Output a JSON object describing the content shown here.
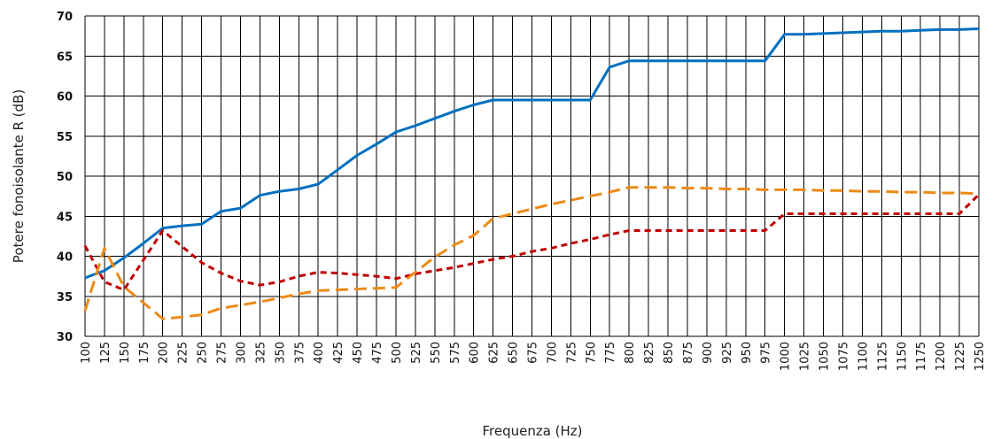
{
  "chart_data": {
    "type": "line",
    "title": "",
    "xlabel": "Frequenza (Hz)",
    "ylabel": "Potere fonoisolante R (dB)",
    "ylim": [
      30,
      70
    ],
    "yticks": [
      "30",
      "35",
      "40",
      "45",
      "50",
      "55",
      "60",
      "65",
      "70"
    ],
    "categories": [
      "100",
      "125",
      "150",
      "175",
      "200",
      "225",
      "250",
      "275",
      "300",
      "325",
      "350",
      "375",
      "400",
      "425",
      "450",
      "475",
      "500",
      "525",
      "550",
      "575",
      "600",
      "625",
      "650",
      "675",
      "700",
      "725",
      "750",
      "775",
      "800",
      "825",
      "850",
      "875",
      "900",
      "925",
      "950",
      "975",
      "1000",
      "1025",
      "1050",
      "1075",
      "1100",
      "1125",
      "1150",
      "1175",
      "1200",
      "1225",
      "1250"
    ],
    "grid": true,
    "series": [
      {
        "color": "#0070c0",
        "dash": "solid",
        "values": [
          37.3,
          38.2,
          39.8,
          41.6,
          43.5,
          43.8,
          44.0,
          45.6,
          46.0,
          47.6,
          48.1,
          48.4,
          49.0,
          50.8,
          52.6,
          54.0,
          55.5,
          56.3,
          57.2,
          58.1,
          58.9,
          59.5,
          59.5,
          59.5,
          59.5,
          59.5,
          59.5,
          63.6,
          64.4,
          64.4,
          64.4,
          64.4,
          64.4,
          64.4,
          64.4,
          64.4,
          67.7,
          67.7,
          67.8,
          67.9,
          68.0,
          68.1,
          68.1,
          68.2,
          68.3,
          68.3,
          68.4
        ]
      },
      {
        "color": "#c00000",
        "dash": "short",
        "values": [
          41.3,
          36.8,
          35.8,
          39.5,
          43.2,
          41.2,
          39.2,
          37.9,
          36.9,
          36.4,
          36.8,
          37.5,
          38.0,
          37.9,
          37.7,
          37.5,
          37.2,
          37.8,
          38.2,
          38.6,
          39.1,
          39.6,
          40.0,
          40.6,
          41.0,
          41.6,
          42.1,
          42.7,
          43.2,
          43.2,
          43.2,
          43.2,
          43.2,
          43.2,
          43.2,
          43.2,
          45.3,
          45.3,
          45.3,
          45.3,
          45.3,
          45.3,
          45.3,
          45.3,
          45.3,
          45.3,
          47.7
        ]
      },
      {
        "color": "#ed8a16",
        "dash": "long",
        "values": [
          33.2,
          41.0,
          36.2,
          34.2,
          32.2,
          32.4,
          32.7,
          33.5,
          33.9,
          34.3,
          34.8,
          35.3,
          35.7,
          35.8,
          35.9,
          36.0,
          36.1,
          38.0,
          39.9,
          41.4,
          42.6,
          44.7,
          45.3,
          45.9,
          46.5,
          47.0,
          47.5,
          48.0,
          48.6,
          48.6,
          48.6,
          48.5,
          48.5,
          48.4,
          48.4,
          48.3,
          48.3,
          48.3,
          48.2,
          48.2,
          48.1,
          48.1,
          48.0,
          48.0,
          47.9,
          47.9,
          47.8
        ]
      }
    ]
  }
}
